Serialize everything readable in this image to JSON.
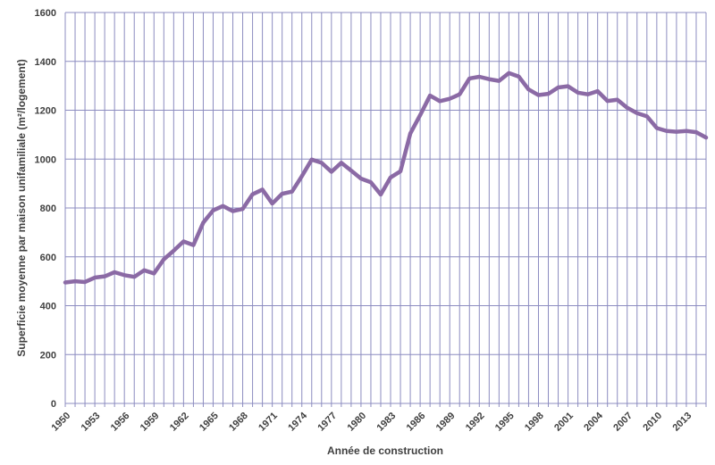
{
  "chart_data": {
    "type": "line",
    "title": "",
    "xlabel": "Année de construction",
    "ylabel": "Superficie moyenne par maison unifamiliale (m²/logement)",
    "ylim": [
      0,
      1600
    ],
    "yticks": [
      0,
      200,
      400,
      600,
      800,
      1000,
      1200,
      1400,
      1600
    ],
    "xlim": [
      1950,
      2015
    ],
    "xtick_labels": [
      "1950",
      "1953",
      "1956",
      "1959",
      "1962",
      "1965",
      "1968",
      "1971",
      "1974",
      "1977",
      "1980",
      "1983",
      "1986",
      "1989",
      "1992",
      "1995",
      "1998",
      "2001",
      "2004",
      "2007",
      "2010",
      "2013"
    ],
    "grid": true,
    "legend": "none",
    "line_color": "#8b6aa5",
    "grid_color": "#8c8cc0",
    "series": [
      {
        "x": [
          1950,
          1951,
          1952,
          1953,
          1954,
          1955,
          1956,
          1957,
          1958,
          1959,
          1960,
          1961,
          1962,
          1963,
          1964,
          1965,
          1966,
          1967,
          1968,
          1969,
          1970,
          1971,
          1972,
          1973,
          1974,
          1975,
          1976,
          1977,
          1978,
          1979,
          1980,
          1981,
          1982,
          1983,
          1984,
          1985,
          1986,
          1987,
          1988,
          1989,
          1990,
          1991,
          1992,
          1993,
          1994,
          1995,
          1996,
          1997,
          1998,
          1999,
          2000,
          2001,
          2002,
          2003,
          2004,
          2005,
          2006,
          2007,
          2008,
          2009,
          2010,
          2011,
          2012,
          2013,
          2014,
          2015
        ],
        "values": [
          495,
          500,
          497,
          515,
          520,
          537,
          525,
          518,
          545,
          532,
          590,
          625,
          663,
          648,
          740,
          790,
          808,
          787,
          796,
          856,
          875,
          818,
          858,
          867,
          930,
          998,
          985,
          948,
          985,
          953,
          920,
          905,
          855,
          925,
          950,
          1105,
          1180,
          1260,
          1237,
          1247,
          1265,
          1330,
          1337,
          1327,
          1320,
          1352,
          1338,
          1285,
          1262,
          1267,
          1293,
          1298,
          1272,
          1265,
          1278,
          1238,
          1243,
          1210,
          1188,
          1175,
          1127,
          1115,
          1112,
          1115,
          1110,
          1088
        ]
      }
    ]
  }
}
